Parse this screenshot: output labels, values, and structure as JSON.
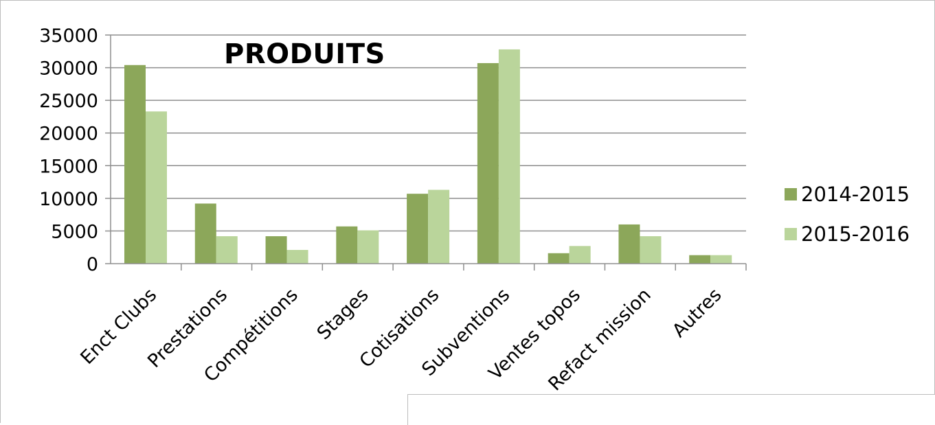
{
  "chart_data": {
    "type": "bar",
    "title": "PRODUITS",
    "categories": [
      "Enct Clubs",
      "Prestations",
      "Compétitions",
      "Stages",
      "Cotisations",
      "Subventions",
      "Ventes topos",
      "Refact mission",
      "Autres"
    ],
    "series": [
      {
        "name": "2014-2015",
        "color": "#8ca75a",
        "values": [
          30400,
          9200,
          4200,
          5700,
          10700,
          30700,
          1600,
          6000,
          1300
        ]
      },
      {
        "name": "2015-2016",
        "color": "#bad59b",
        "values": [
          23300,
          4200,
          2100,
          5100,
          11300,
          32800,
          2700,
          4200,
          1300
        ]
      }
    ],
    "yticks": [
      "0",
      "5000",
      "10000",
      "15000",
      "20000",
      "25000",
      "30000",
      "35000"
    ],
    "ylim": [
      0,
      35000
    ],
    "grid": true,
    "legend_position": "right"
  }
}
